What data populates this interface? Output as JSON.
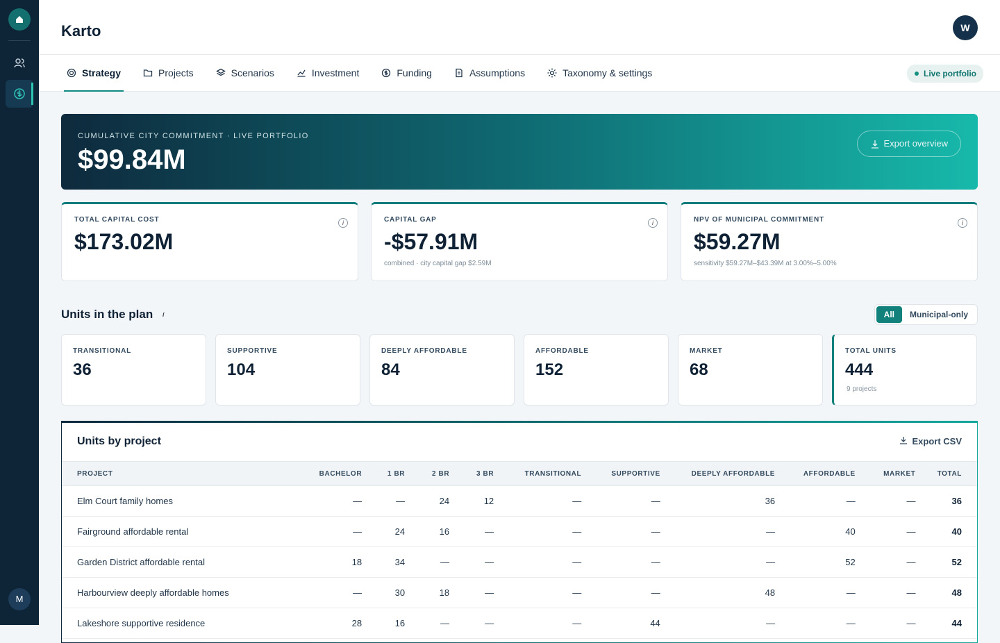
{
  "app": {
    "title": "Karto",
    "avatar": "W",
    "user_initial": "M"
  },
  "tabs": [
    "Strategy",
    "Projects",
    "Scenarios",
    "Investment",
    "Funding",
    "Assumptions",
    "Taxonomy & settings"
  ],
  "status": "Live portfolio",
  "hero": {
    "label": "CUMULATIVE CITY COMMITMENT · LIVE PORTFOLIO",
    "value": "$99.84M",
    "action": "Export overview"
  },
  "kpis": [
    {
      "label": "TOTAL CAPITAL COST",
      "value": "$173.02M"
    },
    {
      "label": "CAPITAL GAP",
      "value": "-$57.91M",
      "note": "combined · city capital gap $2.59M"
    },
    {
      "label": "NPV OF MUNICIPAL COMMITMENT",
      "value": "$59.27M",
      "note": "sensitivity $59.27M–$43.39M at 3.00%–5.00%"
    }
  ],
  "units": {
    "title": "Units in the plan",
    "filters": [
      "All",
      "Municipal-only"
    ],
    "cards": [
      {
        "label": "TRANSITIONAL",
        "value": 36
      },
      {
        "label": "SUPPORTIVE",
        "value": 104
      },
      {
        "label": "DEEPLY AFFORDABLE",
        "value": 84
      },
      {
        "label": "AFFORDABLE",
        "value": 152
      },
      {
        "label": "MARKET",
        "value": 68
      },
      {
        "label": "TOTAL UNITS",
        "value": 444,
        "note": "9 projects"
      }
    ]
  },
  "table": {
    "title": "Units by project",
    "action": "Export CSV",
    "columns": [
      "PROJECT",
      "BACHELOR",
      "1 BR",
      "2 BR",
      "3 BR",
      "TRANSITIONAL",
      "SUPPORTIVE",
      "DEEPLY AFFORDABLE",
      "AFFORDABLE",
      "MARKET",
      "TOTAL"
    ],
    "rows": [
      [
        "Elm Court family homes",
        "—",
        "—",
        24,
        12,
        "—",
        "—",
        36,
        "—",
        "—",
        36
      ],
      [
        "Fairground affordable rental",
        "—",
        24,
        16,
        "—",
        "—",
        "—",
        "—",
        40,
        "—",
        40
      ],
      [
        "Garden District affordable rental",
        18,
        34,
        "—",
        "—",
        "—",
        "—",
        "—",
        52,
        "—",
        52
      ],
      [
        "Harbourview deeply affordable homes",
        "—",
        30,
        18,
        "—",
        "—",
        "—",
        48,
        "—",
        "—",
        48
      ],
      [
        "Lakeshore supportive residence",
        28,
        16,
        "—",
        "—",
        "—",
        44,
        "—",
        "—",
        "—",
        44
      ]
    ]
  }
}
